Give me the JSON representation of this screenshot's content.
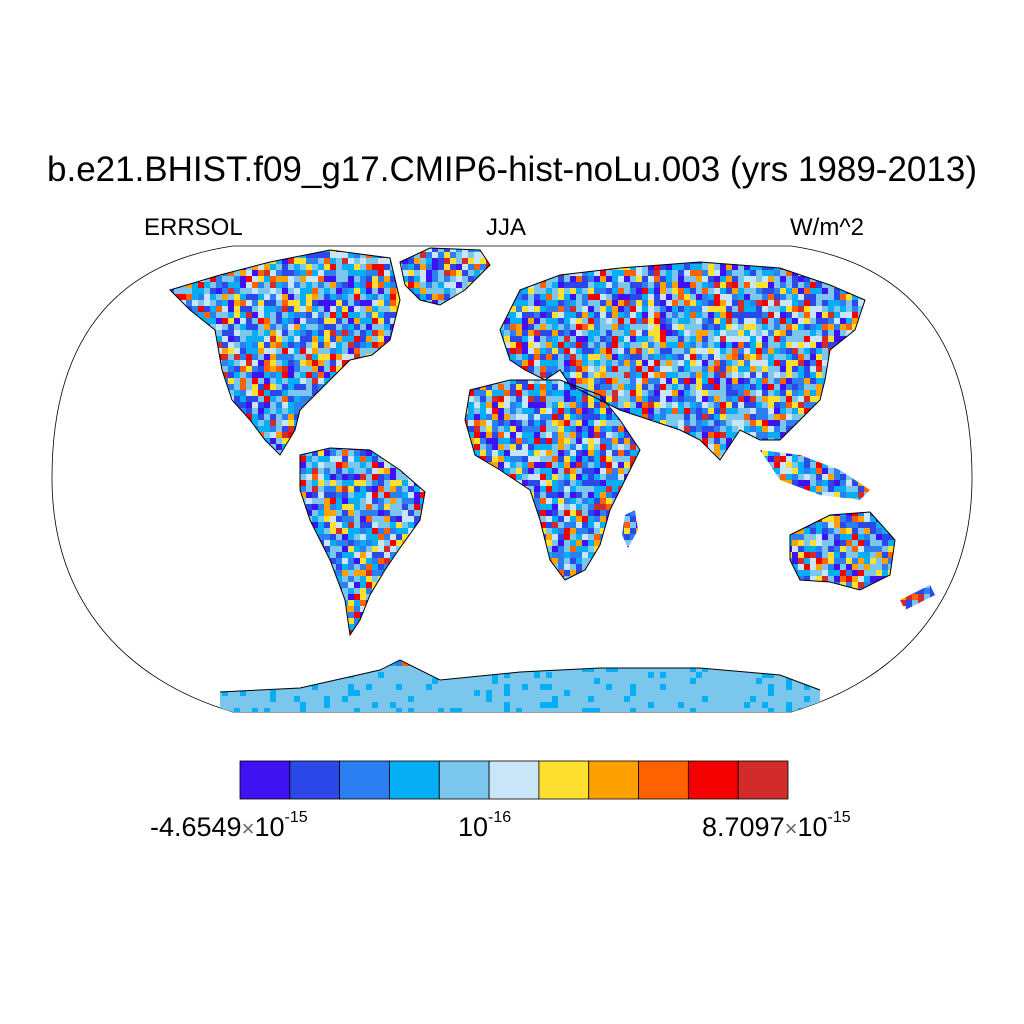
{
  "title": "b.e21.BHIST.f09_g17.CMIP6-hist-noLu.003 (yrs 1989-2013)",
  "left_string": "ERRSOL",
  "center_string": "JJA",
  "right_string": "W/m^2",
  "colorbar": {
    "colors": [
      "#3f12f2",
      "#2c48e8",
      "#2c7ff0",
      "#06aef5",
      "#7ac6ec",
      "#c8e6f8",
      "#fde02f",
      "#fda100",
      "#fd6100",
      "#f50001",
      "#d12b2b"
    ],
    "labels": [
      {
        "mantissa": "-4.6549",
        "times": "×",
        "base": "10",
        "exp": "-15"
      },
      {
        "mantissa": "",
        "times": "",
        "base": "10",
        "exp": "-16"
      },
      {
        "mantissa": "8.7097",
        "times": "×",
        "base": "10",
        "exp": "-15"
      }
    ]
  },
  "map": {
    "projection": "Robinson",
    "ocean_color": "#ffffff",
    "land_fill": "noisy field",
    "antarctica_color": "#7ac6ec"
  }
}
